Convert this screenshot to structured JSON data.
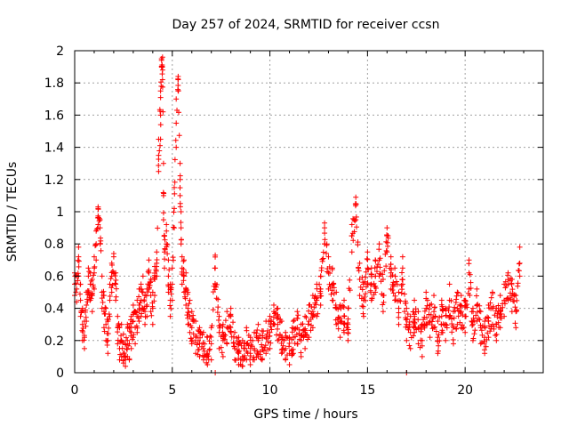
{
  "chart_data": {
    "type": "scatter",
    "title": "Day 257 of 2024, SRMTID for receiver ccsn",
    "xlabel": "GPS time / hours",
    "ylabel": "SRMTID / TECUs",
    "xlim": [
      0,
      24
    ],
    "ylim": [
      0,
      2
    ],
    "xticks": [
      0,
      5,
      10,
      15,
      20
    ],
    "xtick_labels": [
      "0",
      "5",
      "10",
      "15",
      "20"
    ],
    "yticks": [
      0,
      0.2,
      0.4,
      0.6,
      0.8,
      1,
      1.2,
      1.4,
      1.6,
      1.8,
      2
    ],
    "ytick_labels": [
      "0",
      "0.2",
      "0.4",
      "0.6",
      "0.8",
      "1",
      "1.2",
      "1.4",
      "1.6",
      "1.8",
      "2"
    ],
    "grid": true,
    "marker": "+",
    "color": "#ff0000",
    "series": [
      {
        "name": "SRMTID",
        "x": [
          0.0,
          0.1,
          0.2,
          0.3,
          0.4,
          0.5,
          0.6,
          0.7,
          0.8,
          0.9,
          1.0,
          1.1,
          1.2,
          1.3,
          1.4,
          1.5,
          1.6,
          1.7,
          1.8,
          1.9,
          2.0,
          2.1,
          2.2,
          2.3,
          2.4,
          2.5,
          2.6,
          2.7,
          2.8,
          2.9,
          3.0,
          3.1,
          3.2,
          3.3,
          3.4,
          3.5,
          3.6,
          3.7,
          3.8,
          3.9,
          4.0,
          4.1,
          4.2,
          4.3,
          4.4,
          4.45,
          4.5,
          4.55,
          4.6,
          4.7,
          4.8,
          4.9,
          5.0,
          5.1,
          5.2,
          5.3,
          5.4,
          5.45,
          5.5,
          5.6,
          5.7,
          5.8,
          5.9,
          6.0,
          6.2,
          6.4,
          6.6,
          6.8,
          7.0,
          7.2,
          7.4,
          7.6,
          7.8,
          8.0,
          8.2,
          8.4,
          8.6,
          8.8,
          9.0,
          9.2,
          9.4,
          9.6,
          9.8,
          10.0,
          10.2,
          10.4,
          10.6,
          10.8,
          11.0,
          11.2,
          11.4,
          11.6,
          11.8,
          12.0,
          12.2,
          12.4,
          12.6,
          12.8,
          13.0,
          13.2,
          13.4,
          13.6,
          13.8,
          14.0,
          14.2,
          14.4,
          14.6,
          14.8,
          15.0,
          15.2,
          15.4,
          15.6,
          15.8,
          16.0,
          16.2,
          16.4,
          16.6,
          16.8,
          17.0,
          17.2,
          17.4,
          17.6,
          17.8,
          18.0,
          18.2,
          18.4,
          18.6,
          18.8,
          19.0,
          19.2,
          19.4,
          19.6,
          19.8,
          20.0,
          20.2,
          20.4,
          20.6,
          20.8,
          21.0,
          21.2,
          21.4,
          21.6,
          21.8,
          22.0,
          22.2,
          22.4,
          22.6,
          22.8
        ],
        "y": [
          0.55,
          0.52,
          0.72,
          0.45,
          0.3,
          0.22,
          0.42,
          0.6,
          0.55,
          0.48,
          0.62,
          0.8,
          1.02,
          0.9,
          0.5,
          0.38,
          0.3,
          0.2,
          0.45,
          0.6,
          0.72,
          0.55,
          0.28,
          0.15,
          0.2,
          0.12,
          0.08,
          0.2,
          0.18,
          0.25,
          0.32,
          0.28,
          0.35,
          0.42,
          0.45,
          0.5,
          0.38,
          0.42,
          0.62,
          0.48,
          0.4,
          0.58,
          0.68,
          1.35,
          1.6,
          1.94,
          1.9,
          1.1,
          0.75,
          0.88,
          0.6,
          0.45,
          0.55,
          1.02,
          1.55,
          1.82,
          1.2,
          0.9,
          0.65,
          0.6,
          0.52,
          0.4,
          0.35,
          0.28,
          0.22,
          0.18,
          0.15,
          0.12,
          0.18,
          0.65,
          0.25,
          0.2,
          0.28,
          0.35,
          0.15,
          0.12,
          0.1,
          0.18,
          0.12,
          0.15,
          0.2,
          0.16,
          0.22,
          0.25,
          0.38,
          0.3,
          0.22,
          0.15,
          0.12,
          0.22,
          0.28,
          0.2,
          0.25,
          0.32,
          0.38,
          0.45,
          0.52,
          0.9,
          0.62,
          0.55,
          0.4,
          0.32,
          0.35,
          0.3,
          0.85,
          1.05,
          0.58,
          0.45,
          0.65,
          0.55,
          0.6,
          0.7,
          0.48,
          0.85,
          0.62,
          0.55,
          0.4,
          0.65,
          0.3,
          0.25,
          0.35,
          0.28,
          0.2,
          0.4,
          0.32,
          0.38,
          0.22,
          0.35,
          0.3,
          0.45,
          0.28,
          0.4,
          0.38,
          0.35,
          0.62,
          0.3,
          0.42,
          0.28,
          0.22,
          0.32,
          0.4,
          0.3,
          0.38,
          0.45,
          0.55,
          0.48,
          0.38,
          0.68
        ],
        "upper_envelope": [
          0.62,
          0.6,
          0.78,
          0.55,
          0.4,
          0.32,
          0.5,
          0.65,
          0.62,
          0.58,
          0.72,
          0.88,
          1.03,
          0.95,
          0.6,
          0.48,
          0.4,
          0.32,
          0.55,
          0.68,
          0.74,
          0.62,
          0.35,
          0.28,
          0.3,
          0.24,
          0.18,
          0.3,
          0.28,
          0.35,
          0.42,
          0.38,
          0.45,
          0.52,
          0.55,
          0.6,
          0.48,
          0.52,
          0.7,
          0.58,
          0.5,
          0.66,
          0.75,
          1.45,
          1.75,
          1.95,
          1.96,
          1.3,
          0.85,
          0.92,
          0.7,
          0.55,
          0.65,
          1.15,
          1.7,
          1.84,
          1.3,
          1.0,
          0.72,
          0.7,
          0.62,
          0.5,
          0.45,
          0.38,
          0.32,
          0.28,
          0.25,
          0.22,
          0.28,
          0.73,
          0.35,
          0.3,
          0.38,
          0.4,
          0.25,
          0.22,
          0.2,
          0.28,
          0.22,
          0.25,
          0.3,
          0.26,
          0.32,
          0.35,
          0.42,
          0.4,
          0.32,
          0.25,
          0.22,
          0.32,
          0.38,
          0.3,
          0.35,
          0.42,
          0.48,
          0.55,
          0.6,
          0.93,
          0.72,
          0.65,
          0.5,
          0.42,
          0.45,
          0.4,
          0.92,
          1.09,
          0.68,
          0.55,
          0.75,
          0.65,
          0.7,
          0.8,
          0.58,
          0.9,
          0.72,
          0.65,
          0.5,
          0.72,
          0.4,
          0.35,
          0.45,
          0.38,
          0.3,
          0.5,
          0.42,
          0.48,
          0.32,
          0.45,
          0.4,
          0.55,
          0.38,
          0.5,
          0.48,
          0.45,
          0.7,
          0.4,
          0.52,
          0.38,
          0.32,
          0.42,
          0.5,
          0.4,
          0.48,
          0.55,
          0.62,
          0.58,
          0.48,
          0.78
        ],
        "lower_envelope": [
          0.48,
          0.44,
          0.6,
          0.35,
          0.2,
          0.15,
          0.32,
          0.5,
          0.45,
          0.38,
          0.52,
          0.7,
          0.92,
          0.8,
          0.4,
          0.28,
          0.2,
          0.12,
          0.35,
          0.5,
          0.62,
          0.45,
          0.18,
          0.08,
          0.1,
          0.06,
          0.04,
          0.1,
          0.08,
          0.15,
          0.22,
          0.18,
          0.25,
          0.32,
          0.35,
          0.4,
          0.3,
          0.35,
          0.52,
          0.38,
          0.3,
          0.48,
          0.6,
          1.25,
          1.45,
          1.9,
          1.82,
          0.95,
          0.65,
          0.8,
          0.5,
          0.35,
          0.45,
          0.9,
          1.4,
          1.75,
          1.1,
          0.8,
          0.55,
          0.5,
          0.42,
          0.3,
          0.25,
          0.18,
          0.12,
          0.1,
          0.08,
          0.05,
          0.08,
          0.55,
          0.15,
          0.1,
          0.18,
          0.25,
          0.08,
          0.05,
          0.04,
          0.08,
          0.05,
          0.08,
          0.1,
          0.08,
          0.12,
          0.15,
          0.3,
          0.2,
          0.12,
          0.08,
          0.05,
          0.12,
          0.18,
          0.1,
          0.15,
          0.22,
          0.28,
          0.35,
          0.42,
          0.8,
          0.52,
          0.45,
          0.3,
          0.22,
          0.25,
          0.2,
          0.75,
          0.95,
          0.48,
          0.35,
          0.55,
          0.45,
          0.5,
          0.6,
          0.38,
          0.75,
          0.52,
          0.45,
          0.3,
          0.55,
          0.2,
          0.15,
          0.25,
          0.18,
          0.1,
          0.3,
          0.22,
          0.28,
          0.12,
          0.25,
          0.2,
          0.35,
          0.18,
          0.3,
          0.28,
          0.25,
          0.52,
          0.2,
          0.32,
          0.18,
          0.12,
          0.22,
          0.3,
          0.2,
          0.28,
          0.35,
          0.45,
          0.38,
          0.28,
          0.6
        ]
      }
    ],
    "annotations": [
      {
        "x": 7.2,
        "y": 0.0,
        "text": ""
      },
      {
        "x": 17.0,
        "y": 0.0,
        "text": ""
      }
    ]
  }
}
